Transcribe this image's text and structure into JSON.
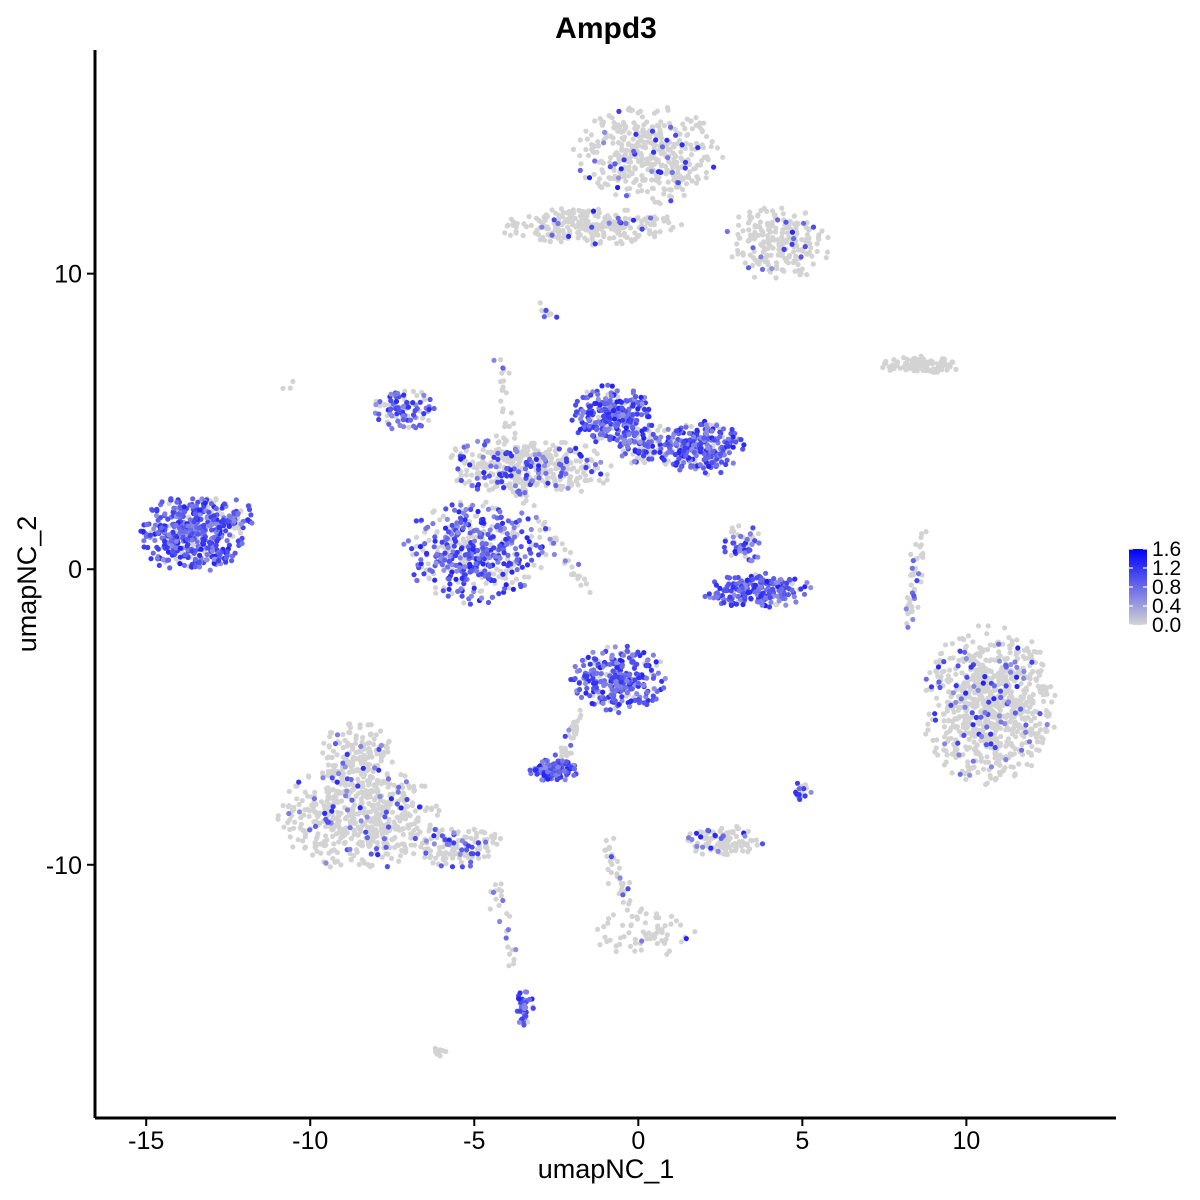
{
  "chart_data": {
    "type": "scatter",
    "title": "Ampd3",
    "xlabel": "umapNC_1",
    "ylabel": "umapNC_2",
    "xlim": [
      -16.5,
      14.5
    ],
    "ylim": [
      -18.5,
      17.5
    ],
    "x_ticks": [
      -15,
      -10,
      -5,
      0,
      5,
      10
    ],
    "x_tick_labels": [
      "-15",
      "-10",
      "-5",
      "0",
      "5",
      "10"
    ],
    "y_ticks": [
      -10,
      0,
      10
    ],
    "y_tick_labels": [
      "-10",
      "0",
      "10"
    ],
    "grid": false,
    "legend": {
      "position": "right",
      "type": "colorbar",
      "range": [
        0.0,
        1.6
      ],
      "labels": [
        "1.6",
        "1.2",
        "0.8",
        "0.4",
        "0.0"
      ],
      "low_color": "#d3d3d3",
      "high_color": "#0000ff"
    },
    "clusters": [
      {
        "cx": -13.6,
        "cy": 1.2,
        "rx": 1.6,
        "ry": 1.3,
        "n": 420,
        "expr_frac": 0.85
      },
      {
        "cx": -12.6,
        "cy": 1.8,
        "rx": 0.9,
        "ry": 0.6,
        "n": 60,
        "expr_frac": 0.6
      },
      {
        "cx": -7.2,
        "cy": 5.4,
        "rx": 1.0,
        "ry": 0.7,
        "n": 90,
        "expr_frac": 0.7
      },
      {
        "cx": -5.0,
        "cy": 0.6,
        "rx": 2.1,
        "ry": 1.7,
        "n": 480,
        "expr_frac": 0.6
      },
      {
        "cx": -4.2,
        "cy": 3.5,
        "rx": 1.6,
        "ry": 1.0,
        "n": 200,
        "expr_frac": 0.25
      },
      {
        "cx": -2.6,
        "cy": 3.4,
        "rx": 1.8,
        "ry": 0.9,
        "n": 220,
        "expr_frac": 0.25
      },
      {
        "cx": -0.8,
        "cy": 5.2,
        "rx": 1.2,
        "ry": 1.0,
        "n": 280,
        "expr_frac": 0.8
      },
      {
        "cx": 1.9,
        "cy": 4.1,
        "rx": 1.3,
        "ry": 0.9,
        "n": 260,
        "expr_frac": 0.75
      },
      {
        "cx": 0.4,
        "cy": 4.2,
        "rx": 1.0,
        "ry": 0.7,
        "n": 120,
        "expr_frac": 0.5
      },
      {
        "cx": 3.6,
        "cy": -0.7,
        "rx": 1.6,
        "ry": 0.6,
        "n": 200,
        "expr_frac": 0.9
      },
      {
        "cx": 3.2,
        "cy": 0.9,
        "rx": 0.6,
        "ry": 0.7,
        "n": 60,
        "expr_frac": 0.5
      },
      {
        "cx": -0.6,
        "cy": -3.7,
        "rx": 1.4,
        "ry": 1.1,
        "n": 280,
        "expr_frac": 0.85
      },
      {
        "cx": -2.6,
        "cy": -6.8,
        "rx": 0.8,
        "ry": 0.35,
        "n": 110,
        "expr_frac": 1.0
      },
      {
        "cx": -8.5,
        "cy": -8.4,
        "rx": 2.4,
        "ry": 1.7,
        "n": 560,
        "expr_frac": 0.1
      },
      {
        "cx": -8.6,
        "cy": -6.4,
        "rx": 1.1,
        "ry": 1.2,
        "n": 160,
        "expr_frac": 0.08
      },
      {
        "cx": -5.7,
        "cy": -9.4,
        "rx": 1.6,
        "ry": 0.7,
        "n": 140,
        "expr_frac": 0.2
      },
      {
        "cx": -3.5,
        "cy": -14.8,
        "rx": 0.3,
        "ry": 0.6,
        "n": 40,
        "expr_frac": 0.9
      },
      {
        "cx": 10.7,
        "cy": -4.6,
        "rx": 2.0,
        "ry": 2.6,
        "n": 820,
        "expr_frac": 0.09
      },
      {
        "cx": 2.6,
        "cy": -9.2,
        "rx": 1.2,
        "ry": 0.5,
        "n": 110,
        "expr_frac": 0.15
      },
      {
        "cx": 0.3,
        "cy": 14.0,
        "rx": 2.2,
        "ry": 1.6,
        "n": 420,
        "expr_frac": 0.08
      },
      {
        "cx": 4.2,
        "cy": 11.0,
        "rx": 1.6,
        "ry": 1.2,
        "n": 220,
        "expr_frac": 0.08
      },
      {
        "cx": -1.5,
        "cy": 11.6,
        "rx": 2.7,
        "ry": 0.6,
        "n": 260,
        "expr_frac": 0.04
      },
      {
        "cx": 8.7,
        "cy": 6.9,
        "rx": 1.3,
        "ry": 0.3,
        "n": 90,
        "expr_frac": 0.02
      },
      {
        "cx": 0.2,
        "cy": -12.3,
        "rx": 1.5,
        "ry": 0.8,
        "n": 70,
        "expr_frac": 0.05
      },
      {
        "cx": 5.0,
        "cy": -7.5,
        "rx": 0.3,
        "ry": 0.3,
        "n": 20,
        "expr_frac": 0.6
      },
      {
        "cx": -6.0,
        "cy": -16.3,
        "rx": 0.3,
        "ry": 0.2,
        "n": 8,
        "expr_frac": 0.0
      }
    ],
    "paths": [
      {
        "from": [
          -4.4,
          7.3
        ],
        "to": [
          -3.6,
          2.6
        ],
        "n": 40
      },
      {
        "from": [
          -3.6,
          2.6
        ],
        "to": [
          -1.5,
          -0.7
        ],
        "n": 40
      },
      {
        "from": [
          -1.8,
          -5.0
        ],
        "to": [
          -2.4,
          -6.6
        ],
        "n": 35
      },
      {
        "from": [
          8.2,
          -2.0
        ],
        "to": [
          8.6,
          1.1
        ],
        "n": 45
      },
      {
        "from": [
          -4.4,
          -10.5
        ],
        "to": [
          -3.7,
          -13.5
        ],
        "n": 25
      },
      {
        "from": [
          -1.0,
          -9.2
        ],
        "to": [
          -0.3,
          -11.5
        ],
        "n": 35
      },
      {
        "from": [
          -2.9,
          8.9
        ],
        "to": [
          -2.8,
          8.5
        ],
        "n": 10
      },
      {
        "from": [
          -10.7,
          6.2
        ],
        "to": [
          -10.6,
          6.0
        ],
        "n": 3
      }
    ]
  }
}
